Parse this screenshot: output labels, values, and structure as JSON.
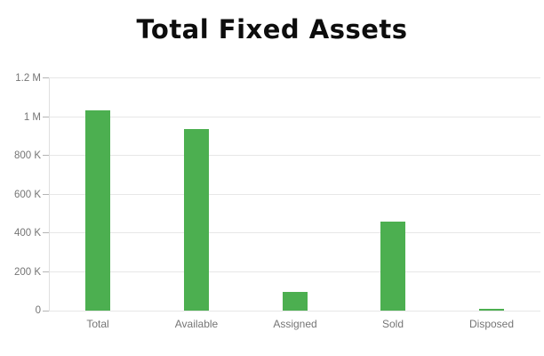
{
  "chart_data": {
    "type": "bar",
    "title": "Total Fixed Assets",
    "categories": [
      "Total",
      "Available",
      "Assigned",
      "Sold",
      "Disposed"
    ],
    "values": [
      1035000,
      940000,
      97000,
      460000,
      11000
    ],
    "xlabel": "",
    "ylabel": "",
    "ylim": [
      0,
      1200000
    ],
    "yticks": [
      {
        "value": 0,
        "label": "0"
      },
      {
        "value": 200000,
        "label": "200 K"
      },
      {
        "value": 400000,
        "label": "400 K"
      },
      {
        "value": 600000,
        "label": "600 K"
      },
      {
        "value": 800000,
        "label": "800 K"
      },
      {
        "value": 1000000,
        "label": "1 M"
      },
      {
        "value": 1200000,
        "label": "1.2 M"
      }
    ],
    "grid": true,
    "legend_position": "none",
    "colors": {
      "bar": "#4caf50",
      "gridline": "#e7e7e7",
      "axis_line": "#e0e0e0",
      "tick": "#b5b5b5",
      "axis_label": "#757575",
      "title": "#0d0d0d",
      "background": "#ffffff"
    }
  }
}
